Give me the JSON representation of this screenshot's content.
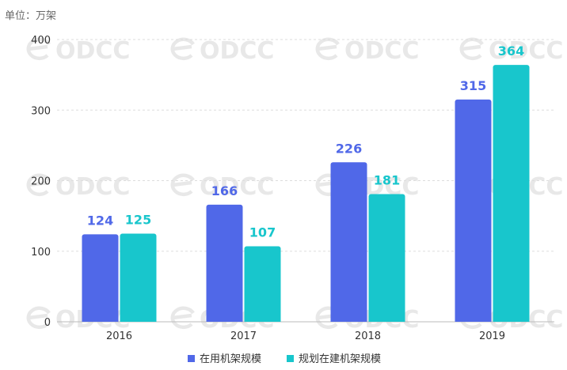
{
  "colors": {
    "series1": "#5068e8",
    "series2": "#18c6cc",
    "grid": "#dddddd",
    "axis": "#bbbbbb",
    "watermark": "#d6d6d6"
  },
  "watermark": {
    "text": "ODCC"
  },
  "chart_data": {
    "type": "bar",
    "unit_label": "单位：万架",
    "categories": [
      "2016",
      "2017",
      "2018",
      "2019"
    ],
    "series": [
      {
        "name": "在用机架规模",
        "values": [
          124,
          166,
          226,
          315
        ]
      },
      {
        "name": "规划在建机架规模",
        "values": [
          125,
          107,
          181,
          364
        ]
      }
    ],
    "ylim": [
      0,
      400
    ],
    "yticks": [
      0,
      100,
      200,
      300,
      400
    ],
    "grid": true,
    "legend_position": "bottom"
  }
}
